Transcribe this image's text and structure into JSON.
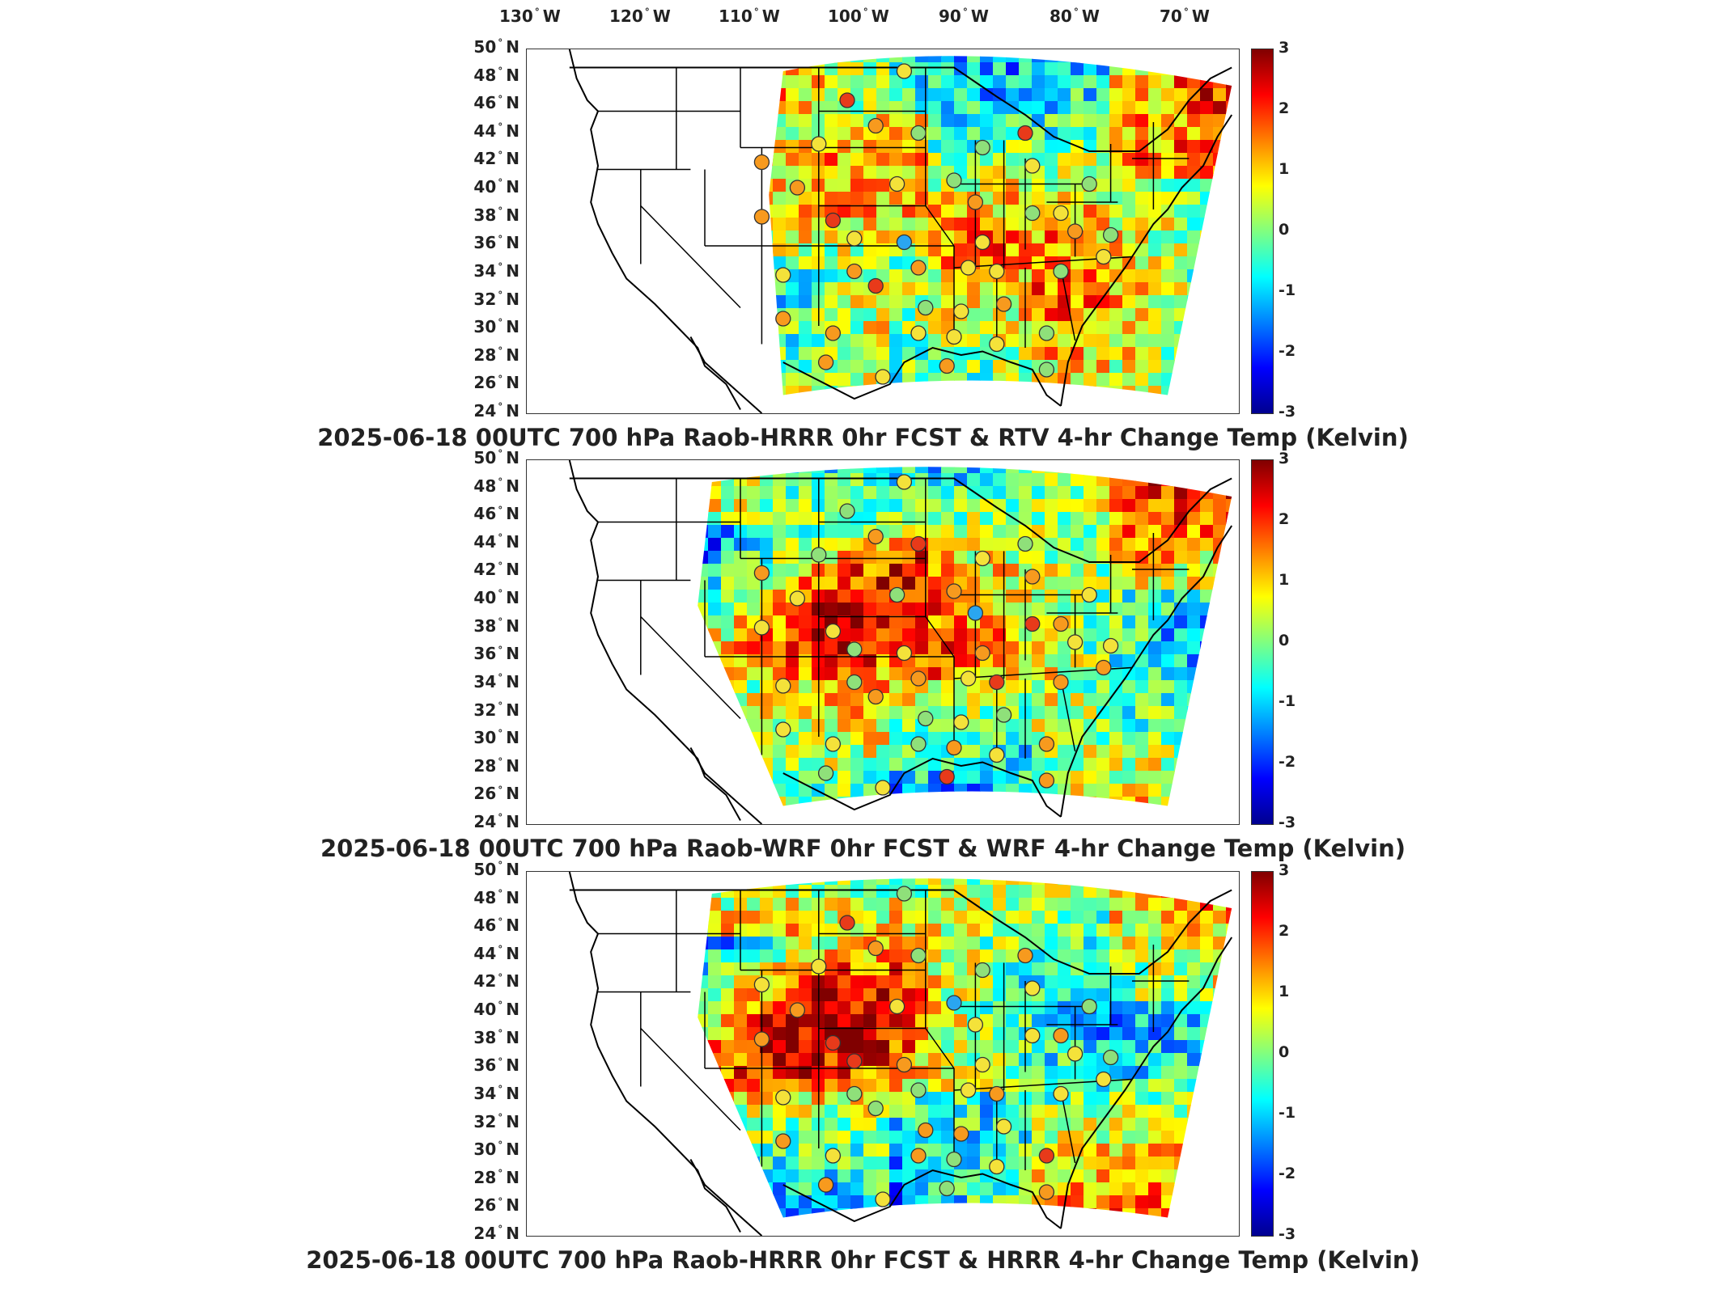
{
  "longitude_labels": [
    "130",
    "120",
    "110",
    "100",
    "90",
    "80",
    "70"
  ],
  "longitude_hemisphere": "W",
  "latitude_labels": [
    "50",
    "48",
    "46",
    "44",
    "42",
    "40",
    "38",
    "36",
    "34",
    "32",
    "30",
    "28",
    "26",
    "24"
  ],
  "latitude_hemisphere": "N",
  "degree_symbol": "°",
  "colorbar": {
    "ticks": [
      "3",
      "2",
      "1",
      "0",
      "-1",
      "-2",
      "-3"
    ],
    "min": -3,
    "max": 3,
    "colormap": "jet"
  },
  "panels": [
    {
      "title": "2025-06-18 00UTC 700 hPa Raob-HRRR 0hr FCST & RTV 4-hr Change Temp (Kelvin)"
    },
    {
      "title": "2025-06-18 00UTC 700 hPa Raob-WRF 0hr FCST & WRF 4-hr Change Temp (Kelvin)"
    },
    {
      "title": "2025-06-18 00UTC 700 hPa Raob-HRRR 0hr FCST & HRRR 4-hr Change Temp (Kelvin)"
    }
  ],
  "colors": {
    "hot": "#e83a1a",
    "warm": "#f79a1e",
    "neutral": "#f4e23a",
    "cool": "#8fe07a",
    "cold": "#2aa6f0"
  }
}
